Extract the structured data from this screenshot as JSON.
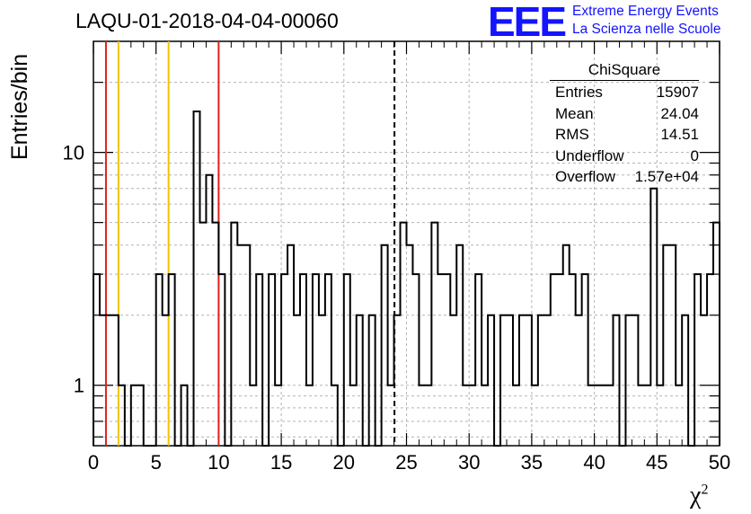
{
  "title": "LAQU-01-2018-04-04-00060",
  "logo": {
    "mark": "EEE",
    "line1": "Extreme Energy Events",
    "line2": "La Scienza nelle Scuole",
    "color": "#1414ff"
  },
  "stats": {
    "name": "ChiSquare",
    "rows": [
      {
        "label": "Entries",
        "value": "15907"
      },
      {
        "label": "Mean",
        "value": "24.04"
      },
      {
        "label": "RMS",
        "value": "14.51"
      },
      {
        "label": "Underflow",
        "value": "0"
      },
      {
        "label": "Overflow",
        "value": "1.57e+04"
      }
    ]
  },
  "axes": {
    "ylabel": "Entries/bin",
    "xlabel": "χ",
    "xlabel_sup": "2"
  },
  "chart_data": {
    "type": "histogram",
    "log_y": true,
    "grid": true,
    "xlim": [
      0,
      50
    ],
    "ylim": [
      0.55,
      30
    ],
    "x_ticks": [
      0,
      5,
      10,
      15,
      20,
      25,
      30,
      35,
      40,
      45,
      50
    ],
    "x_tick_labels": [
      "0",
      "5",
      "10",
      "15",
      "20",
      "25",
      "30",
      "35",
      "40",
      "45",
      "50"
    ],
    "y_tick_labels": [
      {
        "value": 1,
        "label": "1"
      },
      {
        "value": 10,
        "label": "10"
      }
    ],
    "bin_width": 0.5,
    "counts": [
      3,
      2,
      2,
      2,
      1,
      0,
      1,
      1,
      0,
      0,
      3,
      2,
      3,
      0,
      1,
      0,
      15,
      5,
      8,
      5,
      3,
      0,
      5,
      4,
      4,
      1,
      3,
      0,
      3,
      1,
      3,
      4,
      2,
      3,
      1,
      3,
      2,
      3,
      1,
      0,
      3,
      1,
      2,
      0,
      2,
      0,
      4,
      1,
      2,
      5,
      4,
      3,
      1,
      1,
      5,
      3,
      3,
      2,
      4,
      1,
      1,
      3,
      1,
      2,
      0,
      2,
      2,
      1,
      2,
      2,
      1,
      2,
      2,
      3,
      3,
      4,
      3,
      2,
      3,
      1,
      1,
      1,
      1,
      2,
      0,
      2,
      2,
      1,
      1,
      7,
      1,
      4,
      4,
      1,
      2,
      0,
      3,
      2,
      3,
      5
    ],
    "vertical_lines": [
      {
        "x": 1,
        "color": "#e02020",
        "style": "solid"
      },
      {
        "x": 2,
        "color": "#f2c200",
        "style": "solid"
      },
      {
        "x": 6,
        "color": "#f2c200",
        "style": "solid"
      },
      {
        "x": 10,
        "color": "#e02020",
        "style": "solid"
      },
      {
        "x": 24.04,
        "color": "#000000",
        "style": "dashed"
      }
    ]
  }
}
